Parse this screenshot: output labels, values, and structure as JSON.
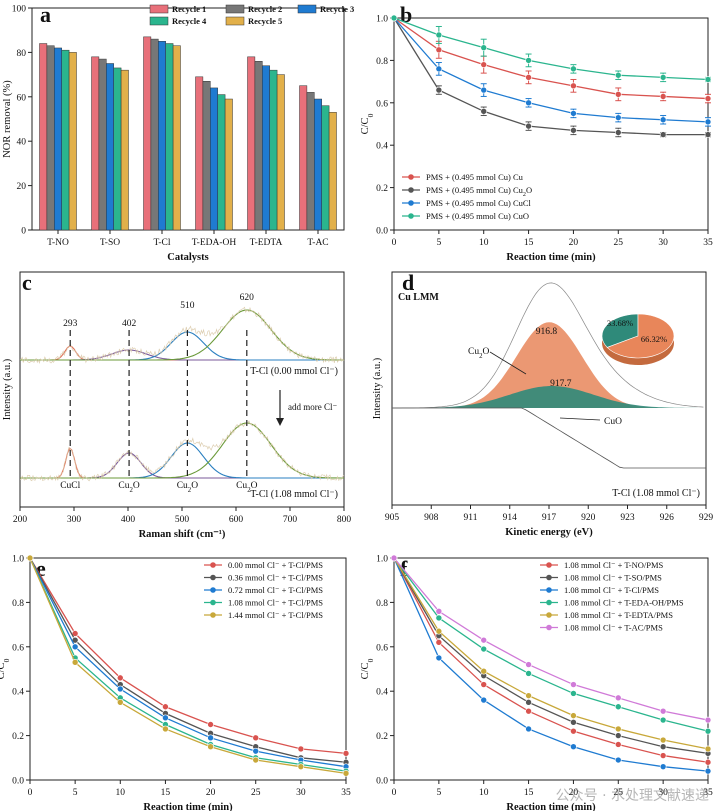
{
  "figure": {
    "watermark": "公众号 · 水处理文献速递"
  },
  "chart_data": [
    {
      "panel": "a",
      "type": "bar",
      "xlabel": "Catalysts",
      "ylabel": "NOR removal (%)",
      "ylim": [
        0,
        100
      ],
      "yticks": [
        0,
        20,
        40,
        60,
        80,
        100
      ],
      "legend_placement": "top",
      "categories": [
        "T-NO",
        "T-SO",
        "T-Cl",
        "T-EDA-OH",
        "T-EDTA",
        "T-AC"
      ],
      "series": [
        {
          "name": "Recycle 1",
          "color": "#e8707a",
          "values": [
            84,
            78,
            87,
            69,
            78,
            65
          ]
        },
        {
          "name": "Recycle 2",
          "color": "#777777",
          "values": [
            83,
            77,
            86,
            67,
            76,
            62
          ]
        },
        {
          "name": "Recycle 3",
          "color": "#1f7bd1",
          "values": [
            82,
            75,
            85,
            64,
            74,
            59
          ]
        },
        {
          "name": "Recycle 4",
          "color": "#2bb58e",
          "values": [
            81,
            73,
            84,
            61,
            72,
            56
          ]
        },
        {
          "name": "Recycle 5",
          "color": "#e2b04a",
          "values": [
            80,
            72,
            83,
            59,
            70,
            53
          ]
        }
      ]
    },
    {
      "panel": "b",
      "type": "line",
      "xlabel": "Reaction time (min)",
      "ylabel": "C/C0",
      "xlim": [
        0,
        35
      ],
      "ylim": [
        0,
        1.0
      ],
      "xticks": [
        0,
        5,
        10,
        15,
        20,
        25,
        30,
        35
      ],
      "yticks": [
        0.0,
        0.2,
        0.4,
        0.6,
        0.8,
        1.0
      ],
      "legend_placement": "bottom-left",
      "x": [
        0,
        5,
        10,
        15,
        20,
        25,
        30,
        35
      ],
      "series": [
        {
          "name": "PMS + (0.495 mmol Cu) Cu",
          "color": "#d9534f",
          "values": [
            1.0,
            0.85,
            0.78,
            0.72,
            0.68,
            0.64,
            0.63,
            0.62
          ],
          "err": [
            0,
            0.04,
            0.04,
            0.03,
            0.03,
            0.03,
            0.02,
            0.02
          ]
        },
        {
          "name": "PMS + (0.495 mmol Cu) Cu2O",
          "color": "#555555",
          "values": [
            1.0,
            0.66,
            0.56,
            0.49,
            0.47,
            0.46,
            0.45,
            0.45
          ],
          "err": [
            0,
            0.02,
            0.02,
            0.02,
            0.02,
            0.02,
            0.01,
            0.01
          ]
        },
        {
          "name": "PMS + (0.495 mmol Cu) CuCl",
          "color": "#1f7bd1",
          "values": [
            1.0,
            0.76,
            0.66,
            0.6,
            0.55,
            0.53,
            0.52,
            0.51
          ],
          "err": [
            0,
            0.03,
            0.03,
            0.02,
            0.02,
            0.02,
            0.02,
            0.02
          ]
        },
        {
          "name": "PMS + (0.495 mmol Cu) CuO",
          "color": "#2bb58e",
          "values": [
            1.0,
            0.92,
            0.86,
            0.8,
            0.76,
            0.73,
            0.72,
            0.71
          ],
          "err": [
            0,
            0.04,
            0.04,
            0.03,
            0.02,
            0.02,
            0.02,
            0.01
          ]
        }
      ]
    },
    {
      "panel": "c",
      "type": "line",
      "xlabel": "Raman shift (cm⁻¹)",
      "ylabel": "Intensity (a.u.)",
      "xlim": [
        200,
        800
      ],
      "xticks": [
        200,
        300,
        400,
        500,
        600,
        700,
        800
      ],
      "peaks": [
        293,
        402,
        510,
        620
      ],
      "peak_labels_top": [
        "293",
        "402",
        "510",
        "620"
      ],
      "peak_labels_bottom": [
        "CuCl",
        "Cu2O",
        "Cu2O",
        "Cu2O"
      ],
      "spectrum_top": "T-Cl (0.00 mmol Cl⁻)",
      "spectrum_bottom": "T-Cl (1.08 mmol Cl⁻)",
      "arrow_label": "add more Cl⁻",
      "component_colors": [
        "#e0735a",
        "#7a5a9a",
        "#2a7fc0",
        "#6b9a3a"
      ]
    },
    {
      "panel": "d",
      "type": "area",
      "xlabel": "Kinetic energy (eV)",
      "ylabel": "Intensity (a.u.)",
      "xlim": [
        905,
        929
      ],
      "xticks": [
        905,
        908,
        911,
        914,
        917,
        920,
        923,
        926,
        929
      ],
      "title_label": "Cu LMM",
      "sample_label": "T-Cl (1.08 mmol Cl⁻)",
      "peaks": [
        {
          "species": "Cu2O",
          "position": "916.8",
          "color": "#e8865a"
        },
        {
          "species": "CuO",
          "position": "917.7",
          "color": "#2f8a7a"
        }
      ],
      "pie": {
        "labels": [
          "Cu2O",
          "CuO"
        ],
        "values": [
          66.32,
          33.68
        ],
        "value_labels": [
          "66.32%",
          "33.68%"
        ]
      }
    },
    {
      "panel": "e",
      "type": "line",
      "xlabel": "Reaction time (min)",
      "ylabel": "C/C0",
      "xlim": [
        0,
        35
      ],
      "ylim": [
        0,
        1.0
      ],
      "xticks": [
        0,
        5,
        10,
        15,
        20,
        25,
        30,
        35
      ],
      "yticks": [
        0.0,
        0.2,
        0.4,
        0.6,
        0.8,
        1.0
      ],
      "legend_placement": "top-right",
      "x": [
        0,
        5,
        10,
        15,
        20,
        25,
        30,
        35
      ],
      "series": [
        {
          "name": "0.00 mmol Cl⁻ + T-Cl/PMS",
          "color": "#d9534f",
          "values": [
            1.0,
            0.66,
            0.46,
            0.33,
            0.25,
            0.19,
            0.14,
            0.12
          ]
        },
        {
          "name": "0.36 mmol Cl⁻ + T-Cl/PMS",
          "color": "#555555",
          "values": [
            1.0,
            0.63,
            0.43,
            0.3,
            0.21,
            0.15,
            0.1,
            0.08
          ]
        },
        {
          "name": "0.72 mmol Cl⁻ + T-Cl/PMS",
          "color": "#1f7bd1",
          "values": [
            1.0,
            0.6,
            0.41,
            0.28,
            0.19,
            0.13,
            0.09,
            0.06
          ]
        },
        {
          "name": "1.08 mmol Cl⁻ + T-Cl/PMS",
          "color": "#2bb58e",
          "values": [
            1.0,
            0.55,
            0.37,
            0.25,
            0.16,
            0.1,
            0.07,
            0.04
          ]
        },
        {
          "name": "1.44 mmol Cl⁻ + T-Cl/PMS",
          "color": "#c8a83a",
          "values": [
            1.0,
            0.53,
            0.35,
            0.23,
            0.15,
            0.09,
            0.06,
            0.03
          ]
        }
      ]
    },
    {
      "panel": "f",
      "type": "line",
      "xlabel": "Reaction time (min)",
      "ylabel": "C/C0",
      "xlim": [
        0,
        35
      ],
      "ylim": [
        0,
        1.0
      ],
      "xticks": [
        0,
        5,
        10,
        15,
        20,
        25,
        30,
        35
      ],
      "yticks": [
        0.0,
        0.2,
        0.4,
        0.6,
        0.8,
        1.0
      ],
      "legend_placement": "top-right",
      "x": [
        0,
        5,
        10,
        15,
        20,
        25,
        30,
        35
      ],
      "series": [
        {
          "name": "1.08 mmol Cl⁻ + T-NO/PMS",
          "color": "#d9534f",
          "values": [
            1.0,
            0.62,
            0.43,
            0.31,
            0.22,
            0.16,
            0.11,
            0.08
          ]
        },
        {
          "name": "1.08 mmol Cl⁻ + T-SO/PMS",
          "color": "#555555",
          "values": [
            1.0,
            0.65,
            0.47,
            0.35,
            0.26,
            0.2,
            0.15,
            0.12
          ]
        },
        {
          "name": "1.08 mmol Cl⁻ + T-Cl/PMS",
          "color": "#1f7bd1",
          "values": [
            1.0,
            0.55,
            0.36,
            0.23,
            0.15,
            0.09,
            0.06,
            0.04
          ]
        },
        {
          "name": "1.08 mmol Cl⁻ + T-EDA-OH/PMS",
          "color": "#2bb58e",
          "values": [
            1.0,
            0.73,
            0.59,
            0.48,
            0.39,
            0.33,
            0.27,
            0.22
          ]
        },
        {
          "name": "1.08 mmol Cl⁻ + T-EDTA/PMS",
          "color": "#c8a83a",
          "values": [
            1.0,
            0.67,
            0.49,
            0.38,
            0.29,
            0.23,
            0.18,
            0.14
          ]
        },
        {
          "name": "1.08 mmol Cl⁻ + T-AC/PMS",
          "color": "#d07ad8",
          "values": [
            1.0,
            0.76,
            0.63,
            0.52,
            0.43,
            0.37,
            0.31,
            0.27
          ]
        }
      ]
    }
  ]
}
